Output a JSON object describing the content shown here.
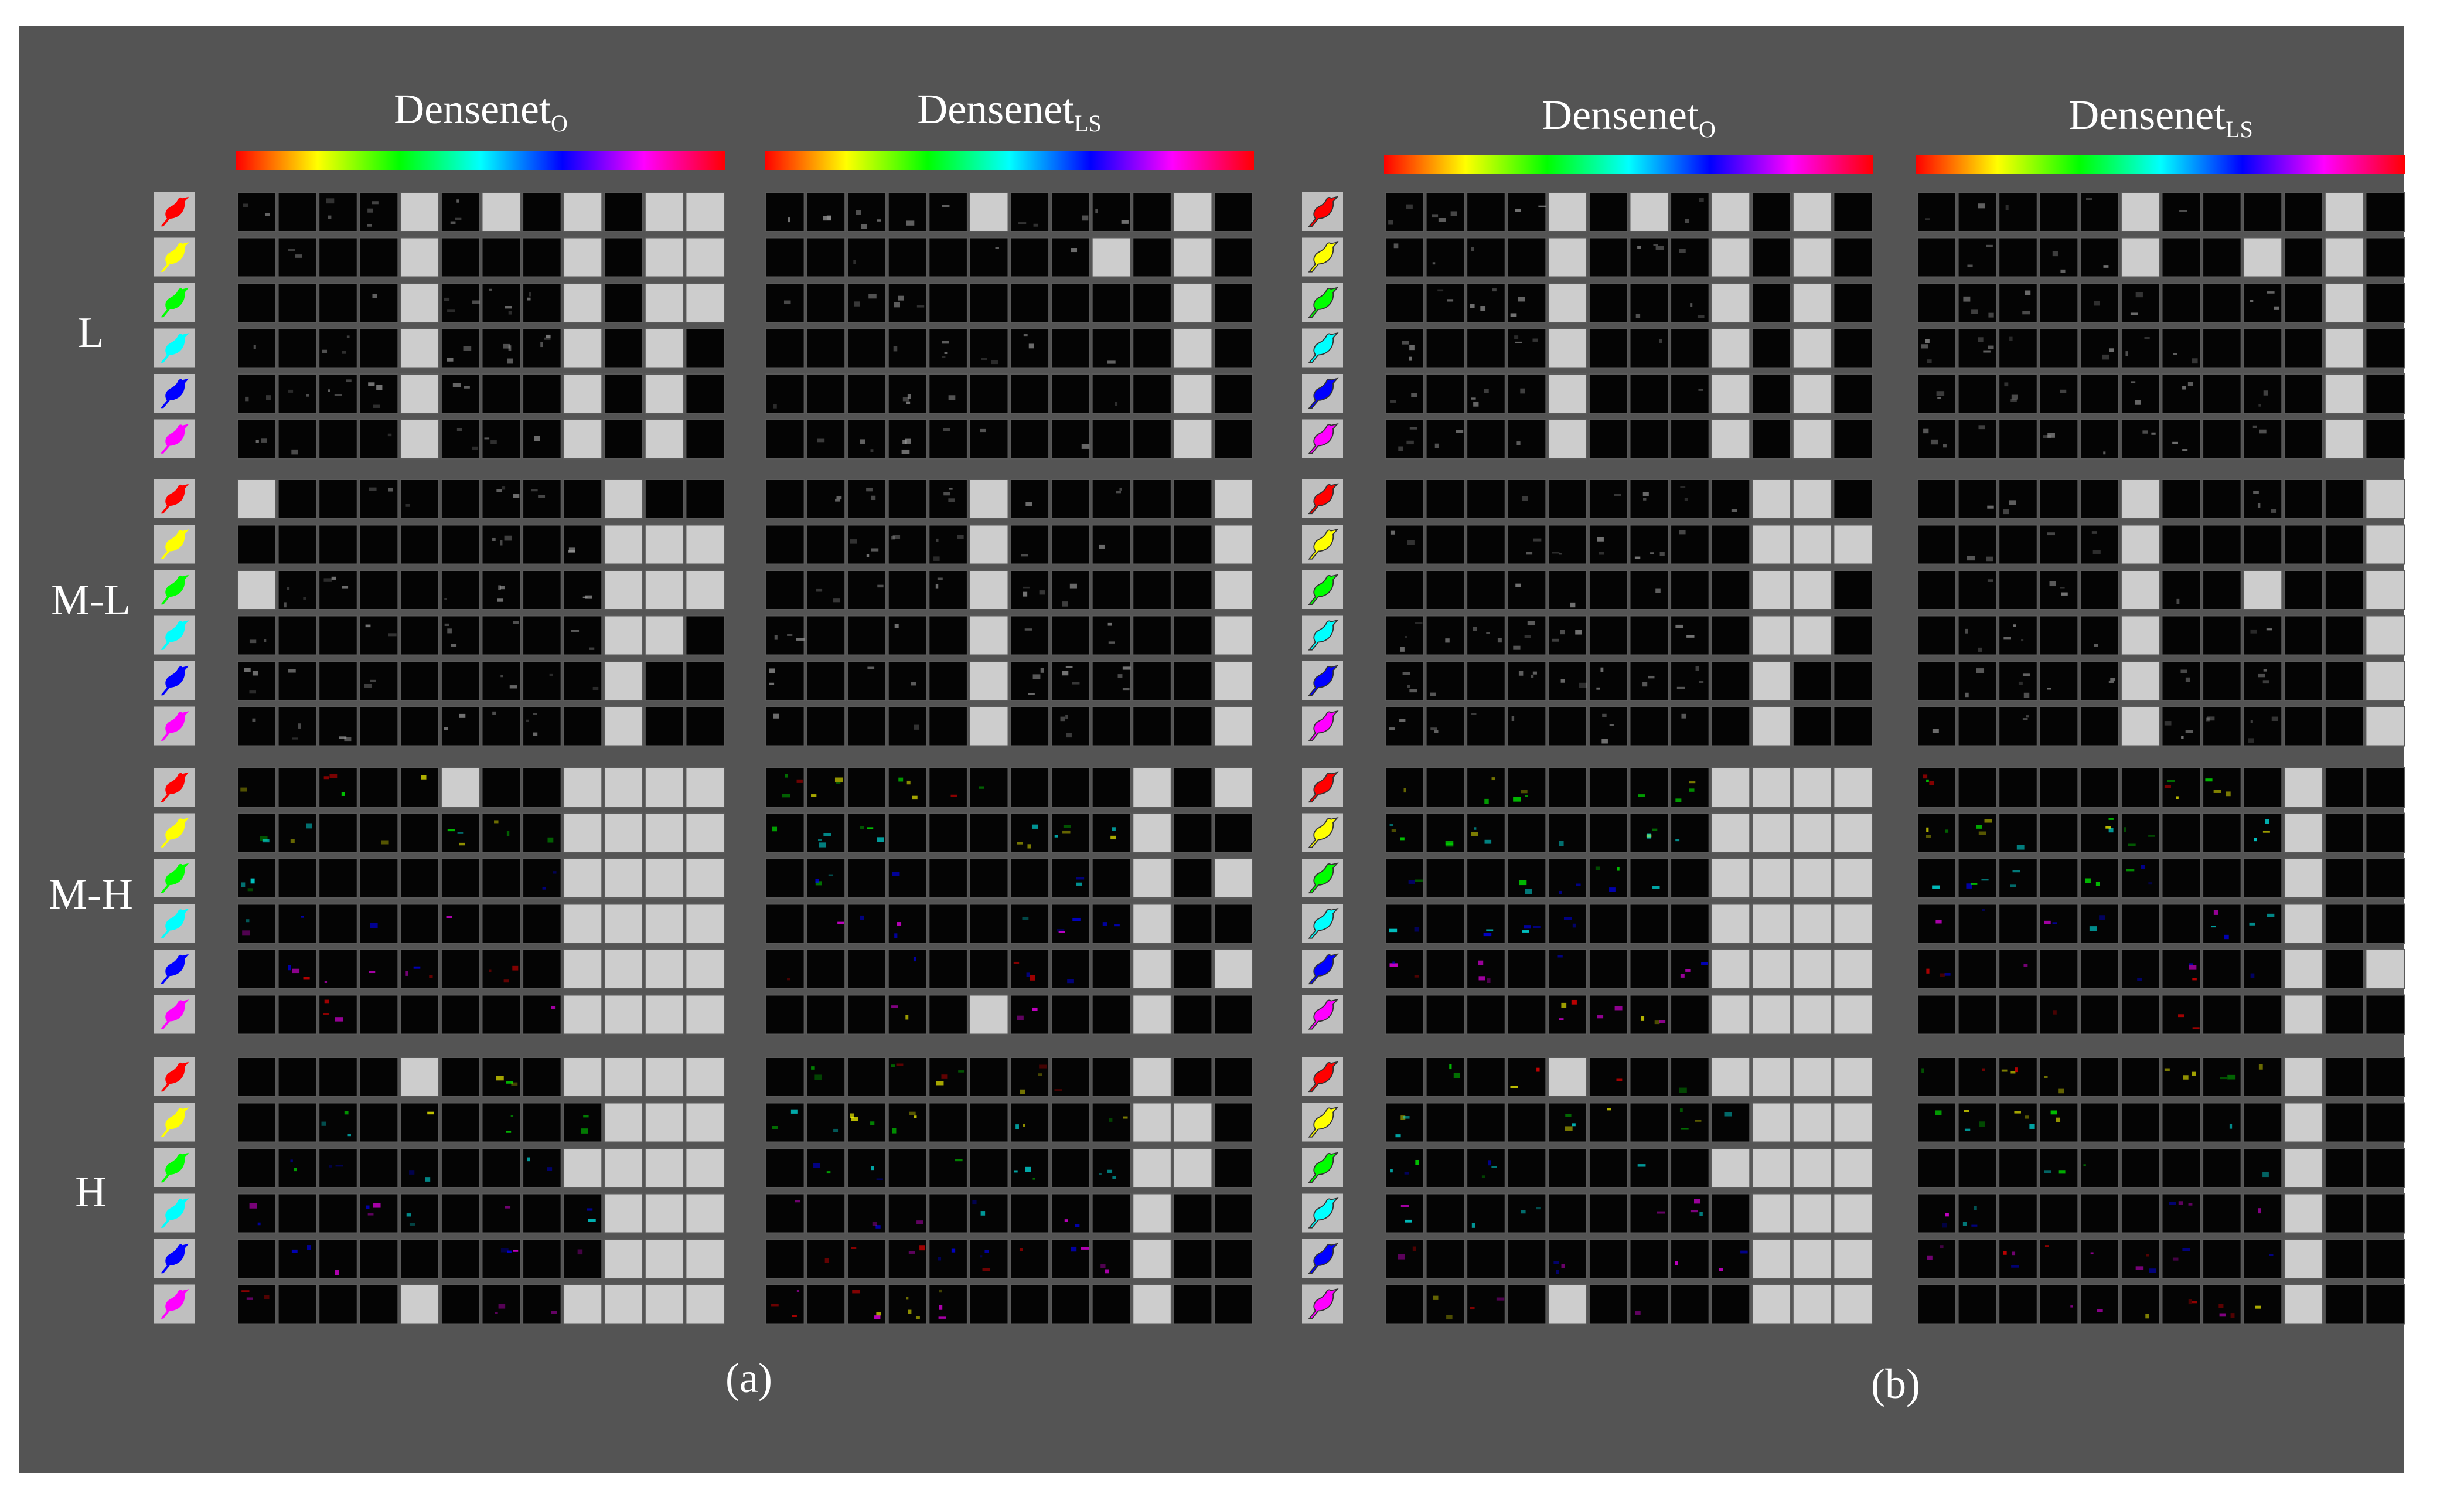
{
  "background_color": "#545454",
  "grid_line_color": "#5a5a5a",
  "cell_color": "#040404",
  "saturated_cell_color": "#cdcdcd",
  "colorbar_colors": [
    "#ff0000",
    "#ffff00",
    "#00ff00",
    "#00ffff",
    "#0000ff",
    "#ff00ff",
    "#ff0000"
  ],
  "class_colors": [
    "#ff0000",
    "#ffff00",
    "#00ff00",
    "#00ffff",
    "#0000ff",
    "#ff00ff"
  ],
  "row_groups": [
    "L",
    "M-L",
    "M-H",
    "H"
  ],
  "columns_per_grid": 12,
  "panels": [
    {
      "label": "(a)",
      "icon_style": "solid",
      "blocks": [
        {
          "title": {
            "main": "Densenet",
            "sub": "O"
          },
          "saturated": [
            [
              [
                0,
                4
              ],
              [
                0,
                6
              ],
              [
                0,
                8
              ],
              [
                0,
                10
              ],
              [
                0,
                11
              ],
              [
                1,
                4
              ],
              [
                1,
                8
              ],
              [
                1,
                10
              ],
              [
                1,
                11
              ],
              [
                2,
                4
              ],
              [
                2,
                8
              ],
              [
                2,
                10
              ],
              [
                2,
                11
              ],
              [
                3,
                4
              ],
              [
                3,
                8
              ],
              [
                3,
                10
              ],
              [
                4,
                4
              ],
              [
                4,
                8
              ],
              [
                4,
                10
              ],
              [
                5,
                4
              ],
              [
                5,
                8
              ],
              [
                5,
                10
              ]
            ],
            [
              [
                0,
                0
              ],
              [
                0,
                9
              ],
              [
                1,
                9
              ],
              [
                1,
                10
              ],
              [
                1,
                11
              ],
              [
                2,
                0
              ],
              [
                2,
                9
              ],
              [
                2,
                10
              ],
              [
                2,
                11
              ],
              [
                3,
                9
              ],
              [
                3,
                10
              ],
              [
                4,
                9
              ],
              [
                5,
                9
              ]
            ],
            [
              [
                0,
                5
              ],
              [
                0,
                8
              ],
              [
                0,
                9
              ],
              [
                0,
                10
              ],
              [
                0,
                11
              ],
              [
                1,
                8
              ],
              [
                1,
                9
              ],
              [
                1,
                10
              ],
              [
                1,
                11
              ],
              [
                2,
                8
              ],
              [
                2,
                9
              ],
              [
                2,
                10
              ],
              [
                2,
                11
              ],
              [
                3,
                8
              ],
              [
                3,
                9
              ],
              [
                3,
                10
              ],
              [
                3,
                11
              ],
              [
                4,
                8
              ],
              [
                4,
                9
              ],
              [
                4,
                10
              ],
              [
                4,
                11
              ],
              [
                5,
                8
              ],
              [
                5,
                9
              ],
              [
                5,
                10
              ],
              [
                5,
                11
              ]
            ],
            [
              [
                0,
                4
              ],
              [
                0,
                8
              ],
              [
                0,
                9
              ],
              [
                0,
                10
              ],
              [
                0,
                11
              ],
              [
                1,
                9
              ],
              [
                1,
                10
              ],
              [
                1,
                11
              ],
              [
                2,
                8
              ],
              [
                2,
                9
              ],
              [
                2,
                10
              ],
              [
                2,
                11
              ],
              [
                3,
                9
              ],
              [
                3,
                10
              ],
              [
                3,
                11
              ],
              [
                4,
                9
              ],
              [
                4,
                10
              ],
              [
                4,
                11
              ],
              [
                5,
                4
              ],
              [
                5,
                8
              ],
              [
                5,
                9
              ],
              [
                5,
                10
              ],
              [
                5,
                11
              ]
            ]
          ]
        },
        {
          "title": {
            "main": "Densenet",
            "sub": "LS"
          },
          "saturated": [
            [
              [
                0,
                5
              ],
              [
                0,
                10
              ],
              [
                1,
                8
              ],
              [
                1,
                10
              ],
              [
                2,
                10
              ],
              [
                3,
                10
              ],
              [
                4,
                10
              ],
              [
                5,
                10
              ]
            ],
            [
              [
                0,
                5
              ],
              [
                0,
                11
              ],
              [
                1,
                5
              ],
              [
                1,
                11
              ],
              [
                2,
                5
              ],
              [
                2,
                11
              ],
              [
                3,
                5
              ],
              [
                3,
                11
              ],
              [
                4,
                5
              ],
              [
                4,
                11
              ],
              [
                5,
                5
              ],
              [
                5,
                11
              ]
            ],
            [
              [
                0,
                9
              ],
              [
                0,
                11
              ],
              [
                1,
                9
              ],
              [
                2,
                9
              ],
              [
                2,
                11
              ],
              [
                3,
                9
              ],
              [
                4,
                9
              ],
              [
                4,
                11
              ],
              [
                5,
                5
              ],
              [
                5,
                9
              ]
            ],
            [
              [
                0,
                9
              ],
              [
                1,
                9
              ],
              [
                1,
                10
              ],
              [
                2,
                9
              ],
              [
                2,
                10
              ],
              [
                3,
                9
              ],
              [
                4,
                9
              ],
              [
                5,
                9
              ]
            ]
          ]
        }
      ]
    },
    {
      "label": "(b)",
      "icon_style": "outlined",
      "blocks": [
        {
          "title": {
            "main": "Densenet",
            "sub": "O"
          },
          "saturated": [
            [
              [
                0,
                4
              ],
              [
                0,
                6
              ],
              [
                0,
                8
              ],
              [
                0,
                10
              ],
              [
                1,
                4
              ],
              [
                1,
                8
              ],
              [
                1,
                10
              ],
              [
                2,
                4
              ],
              [
                2,
                8
              ],
              [
                2,
                10
              ],
              [
                3,
                4
              ],
              [
                3,
                8
              ],
              [
                3,
                10
              ],
              [
                4,
                4
              ],
              [
                4,
                8
              ],
              [
                4,
                10
              ],
              [
                5,
                4
              ],
              [
                5,
                8
              ],
              [
                5,
                10
              ]
            ],
            [
              [
                0,
                9
              ],
              [
                0,
                10
              ],
              [
                1,
                9
              ],
              [
                1,
                10
              ],
              [
                1,
                11
              ],
              [
                2,
                9
              ],
              [
                2,
                10
              ],
              [
                3,
                9
              ],
              [
                3,
                10
              ],
              [
                4,
                9
              ],
              [
                5,
                9
              ]
            ],
            [
              [
                0,
                8
              ],
              [
                0,
                9
              ],
              [
                0,
                10
              ],
              [
                0,
                11
              ],
              [
                1,
                8
              ],
              [
                1,
                9
              ],
              [
                1,
                10
              ],
              [
                1,
                11
              ],
              [
                2,
                8
              ],
              [
                2,
                9
              ],
              [
                2,
                10
              ],
              [
                2,
                11
              ],
              [
                3,
                8
              ],
              [
                3,
                9
              ],
              [
                3,
                10
              ],
              [
                3,
                11
              ],
              [
                4,
                8
              ],
              [
                4,
                9
              ],
              [
                4,
                10
              ],
              [
                4,
                11
              ],
              [
                5,
                8
              ],
              [
                5,
                9
              ],
              [
                5,
                10
              ],
              [
                5,
                11
              ]
            ],
            [
              [
                0,
                4
              ],
              [
                0,
                8
              ],
              [
                0,
                9
              ],
              [
                0,
                10
              ],
              [
                0,
                11
              ],
              [
                1,
                9
              ],
              [
                1,
                10
              ],
              [
                1,
                11
              ],
              [
                2,
                8
              ],
              [
                2,
                9
              ],
              [
                2,
                10
              ],
              [
                2,
                11
              ],
              [
                3,
                9
              ],
              [
                3,
                10
              ],
              [
                3,
                11
              ],
              [
                4,
                9
              ],
              [
                4,
                10
              ],
              [
                4,
                11
              ],
              [
                5,
                4
              ],
              [
                5,
                9
              ],
              [
                5,
                10
              ],
              [
                5,
                11
              ]
            ]
          ]
        },
        {
          "title": {
            "main": "Densenet",
            "sub": "LS"
          },
          "saturated": [
            [
              [
                0,
                5
              ],
              [
                0,
                10
              ],
              [
                1,
                5
              ],
              [
                1,
                8
              ],
              [
                1,
                10
              ],
              [
                2,
                10
              ],
              [
                3,
                10
              ],
              [
                4,
                10
              ],
              [
                5,
                10
              ]
            ],
            [
              [
                0,
                5
              ],
              [
                0,
                11
              ],
              [
                1,
                5
              ],
              [
                1,
                11
              ],
              [
                2,
                5
              ],
              [
                2,
                8
              ],
              [
                2,
                11
              ],
              [
                3,
                5
              ],
              [
                3,
                11
              ],
              [
                4,
                5
              ],
              [
                4,
                11
              ],
              [
                5,
                5
              ],
              [
                5,
                11
              ]
            ],
            [
              [
                0,
                9
              ],
              [
                1,
                9
              ],
              [
                2,
                9
              ],
              [
                3,
                9
              ],
              [
                4,
                9
              ],
              [
                4,
                11
              ],
              [
                5,
                9
              ]
            ],
            [
              [
                0,
                9
              ],
              [
                1,
                9
              ],
              [
                2,
                9
              ],
              [
                3,
                9
              ],
              [
                4,
                9
              ],
              [
                5,
                9
              ]
            ]
          ]
        }
      ]
    }
  ]
}
